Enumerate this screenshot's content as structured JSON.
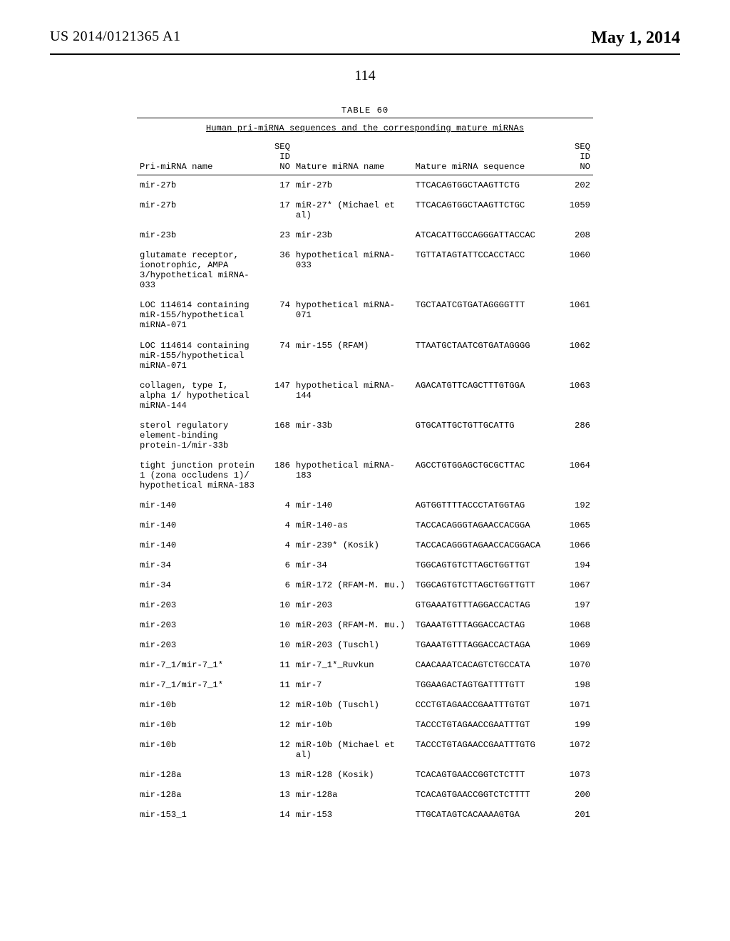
{
  "header": {
    "pub_number": "US 2014/0121365 A1",
    "pub_date": "May 1, 2014",
    "page_number": "114"
  },
  "table": {
    "label": "TABLE 60",
    "caption": "Human pri-miRNA sequences and the corresponding mature miRNAs",
    "columns": {
      "pri": "Pri-miRNA name",
      "seq1a": "SEQ ID",
      "seq1b": "NO",
      "mname": "Mature miRNA name",
      "mseq": "Mature miRNA sequence",
      "seq2a": "SEQ",
      "seq2b": "ID",
      "seq2c": "NO"
    },
    "rows": [
      {
        "pri": "mir-27b",
        "seq1": "17",
        "mname": "mir-27b",
        "mseq": "TTCACAGTGGCTAAGTTCTG",
        "seq2": "202"
      },
      {
        "pri": "mir-27b",
        "seq1": "17",
        "mname": "miR-27* (Michael et al)",
        "mseq": "TTCACAGTGGCTAAGTTCTGC",
        "seq2": "1059"
      },
      {
        "pri": "mir-23b",
        "seq1": "23",
        "mname": "mir-23b",
        "mseq": "ATCACATTGCCAGGGATTACCAC",
        "seq2": "208"
      },
      {
        "pri": "glutamate receptor, ionotrophic, AMPA 3/hypothetical miRNA-033",
        "seq1": "36",
        "mname": "hypothetical miRNA-033",
        "mseq": "TGTTATAGTATTCCACCTACC",
        "seq2": "1060"
      },
      {
        "pri": "LOC 114614 containing miR-155/hypothetical miRNA-071",
        "seq1": "74",
        "mname": "hypothetical miRNA-071",
        "mseq": "TGCTAATCGTGATAGGGGTTT",
        "seq2": "1061"
      },
      {
        "pri": "LOC 114614 containing miR-155/hypothetical miRNA-071",
        "seq1": "74",
        "mname": "mir-155 (RFAM)",
        "mseq": "TTAATGCTAATCGTGATAGGGG",
        "seq2": "1062"
      },
      {
        "pri": "collagen, type I, alpha 1/ hypothetical miRNA-144",
        "seq1": "147",
        "mname": "hypothetical miRNA-144",
        "mseq": "AGACATGTTCAGCTTTGTGGA",
        "seq2": "1063"
      },
      {
        "pri": "sterol regulatory element-binding protein-1/mir-33b",
        "seq1": "168",
        "mname": "mir-33b",
        "mseq": "GTGCATTGCTGTTGCATTG",
        "seq2": "286"
      },
      {
        "pri": "tight junction protein 1 (zona occludens 1)/ hypothetical miRNA-183",
        "seq1": "186",
        "mname": "hypothetical miRNA-183",
        "mseq": "AGCCTGTGGAGCTGCGCTTAC",
        "seq2": "1064"
      },
      {
        "pri": "mir-140",
        "seq1": "4",
        "mname": "mir-140",
        "mseq": "AGTGGTTTTACCCTATGGTAG",
        "seq2": "192"
      },
      {
        "pri": "mir-140",
        "seq1": "4",
        "mname": "miR-140-as",
        "mseq": "TACCACAGGGTAGAACCACGGA",
        "seq2": "1065"
      },
      {
        "pri": "mir-140",
        "seq1": "4",
        "mname": "mir-239* (Kosik)",
        "mseq": "TACCACAGGGTAGAACCACGGACA",
        "seq2": "1066"
      },
      {
        "pri": "mir-34",
        "seq1": "6",
        "mname": "mir-34",
        "mseq": "TGGCAGTGTCTTAGCTGGTTGT",
        "seq2": "194"
      },
      {
        "pri": "mir-34",
        "seq1": "6",
        "mname": "miR-172 (RFAM-M. mu.)",
        "mseq": "TGGCAGTGTCTTAGCTGGTTGTT",
        "seq2": "1067"
      },
      {
        "pri": "mir-203",
        "seq1": "10",
        "mname": "mir-203",
        "mseq": "GTGAAATGTTTAGGACCACTAG",
        "seq2": "197"
      },
      {
        "pri": "mir-203",
        "seq1": "10",
        "mname": "miR-203 (RFAM-M. mu.)",
        "mseq": "TGAAATGTTTAGGACCACTAG",
        "seq2": "1068"
      },
      {
        "pri": "mir-203",
        "seq1": "10",
        "mname": "miR-203 (Tuschl)",
        "mseq": "TGAAATGTTTAGGACCACTAGA",
        "seq2": "1069"
      },
      {
        "pri": "mir-7_1/mir-7_1*",
        "seq1": "11",
        "mname": "mir-7_1*_Ruvkun",
        "mseq": "CAACAAATCACAGTCTGCCATA",
        "seq2": "1070"
      },
      {
        "pri": "mir-7_1/mir-7_1*",
        "seq1": "11",
        "mname": "mir-7",
        "mseq": "TGGAAGACTAGTGATTTTGTT",
        "seq2": "198"
      },
      {
        "pri": "mir-10b",
        "seq1": "12",
        "mname": "miR-10b (Tuschl)",
        "mseq": "CCCTGTAGAACCGAATTTGTGT",
        "seq2": "1071"
      },
      {
        "pri": "mir-10b",
        "seq1": "12",
        "mname": "mir-10b",
        "mseq": "TACCCTGTAGAACCGAATTTGT",
        "seq2": "199"
      },
      {
        "pri": "mir-10b",
        "seq1": "12",
        "mname": "miR-10b (Michael et al)",
        "mseq": "TACCCTGTAGAACCGAATTTGTG",
        "seq2": "1072"
      },
      {
        "pri": "mir-128a",
        "seq1": "13",
        "mname": "miR-128 (Kosik)",
        "mseq": "TCACAGTGAACCGGTCTCTTT",
        "seq2": "1073"
      },
      {
        "pri": "mir-128a",
        "seq1": "13",
        "mname": "mir-128a",
        "mseq": "TCACAGTGAACCGGTCTCTTTT",
        "seq2": "200"
      },
      {
        "pri": "mir-153_1",
        "seq1": "14",
        "mname": "mir-153",
        "mseq": "TTGCATAGTCACAAAAGTGA",
        "seq2": "201"
      }
    ]
  }
}
